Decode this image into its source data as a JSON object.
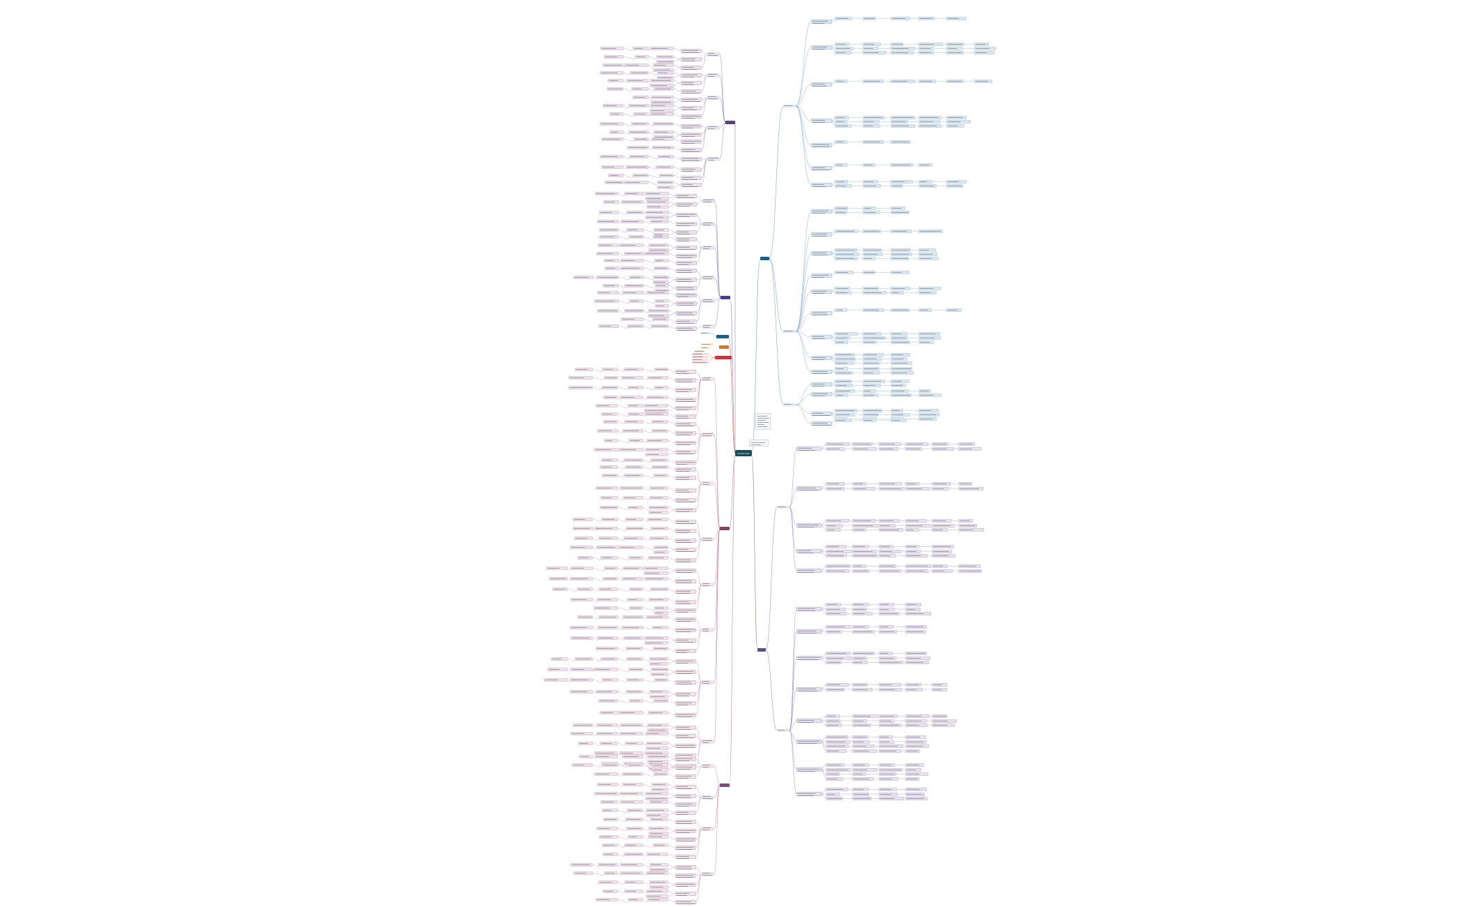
{
  "central": {
    "label": "Central Topic"
  },
  "palette": {
    "central": "#1e4b5c",
    "blue_accent": "#1f5d86",
    "blue_fill": "#dce7f1",
    "blue_line": "#6f9bbf",
    "purple_accent": "#5a3f7f",
    "purple_fill": "#e9e3ef",
    "pink_accent": "#8a3f66",
    "pink_fill": "#f2e3ea",
    "pink_line": "#c58aa8",
    "orange_accent": "#d9772b",
    "red_accent": "#c03a3a"
  },
  "branches": [
    {
      "id": "upper-right",
      "color": "#1f5d86",
      "side": "right"
    },
    {
      "id": "lower-right",
      "color": "#5a3f7f",
      "side": "right"
    },
    {
      "id": "upper-left-1",
      "color": "#5a3f7f",
      "side": "left"
    },
    {
      "id": "upper-left-2",
      "color": "#4a3f8f",
      "side": "left"
    },
    {
      "id": "small-blue",
      "color": "#1f5d86",
      "side": "left"
    },
    {
      "id": "small-orange",
      "color": "#d9772b",
      "side": "left"
    },
    {
      "id": "small-red",
      "color": "#c03a3a",
      "side": "left"
    },
    {
      "id": "lower-left-1",
      "color": "#8a3f66",
      "side": "left"
    },
    {
      "id": "lower-left-2",
      "color": "#7a4a7f",
      "side": "left"
    }
  ],
  "notes": [
    {
      "id": "note-1"
    },
    {
      "id": "note-2"
    }
  ]
}
